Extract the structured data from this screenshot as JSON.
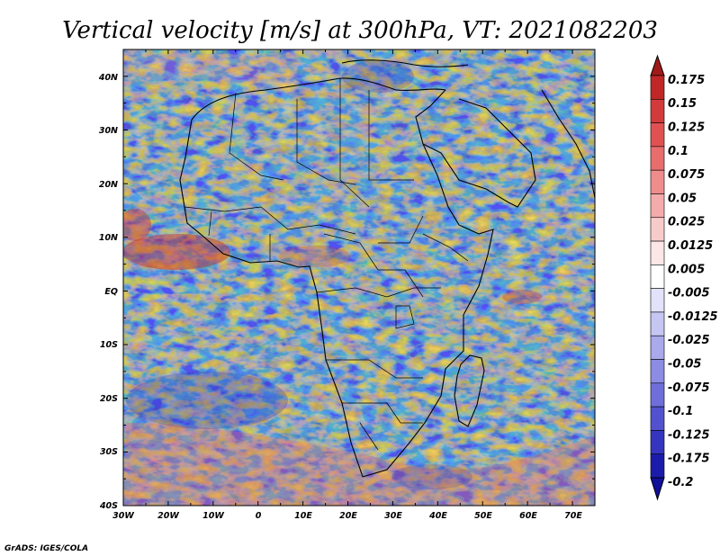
{
  "title": "Vertical velocity [m/s] at 300hPa, VT: 2021082203",
  "credit": "GrADS: IGES/COLA",
  "map": {
    "lon_range": [
      -30,
      75
    ],
    "lat_range": [
      -40,
      45
    ],
    "lat_ticks": [
      "40N",
      "30N",
      "20N",
      "10N",
      "EQ",
      "10S",
      "20S",
      "30S",
      "40S"
    ],
    "lon_ticks": [
      "30W",
      "20W",
      "10W",
      "0",
      "10E",
      "20E",
      "30E",
      "40E",
      "50E",
      "60E",
      "70E"
    ]
  },
  "colorbar": {
    "labels": [
      "0.175",
      "0.15",
      "0.125",
      "0.1",
      "0.075",
      "0.05",
      "0.025",
      "0.0125",
      "0.005",
      "-0.005",
      "-0.0125",
      "-0.025",
      "-0.05",
      "-0.075",
      "-0.1",
      "-0.125",
      "-0.175",
      "-0.2"
    ],
    "colors": [
      "#a11a1a",
      "#c02828",
      "#d23b3b",
      "#e05252",
      "#e86e6e",
      "#ef8c8c",
      "#f4abab",
      "#f8cbcb",
      "#fce6e6",
      "#ffffff",
      "#e2e2fb",
      "#c6c6f3",
      "#a9a9ec",
      "#8c8ce4",
      "#6f6fdb",
      "#5252cf",
      "#3535c0",
      "#1c1caa",
      "#10109a"
    ]
  }
}
